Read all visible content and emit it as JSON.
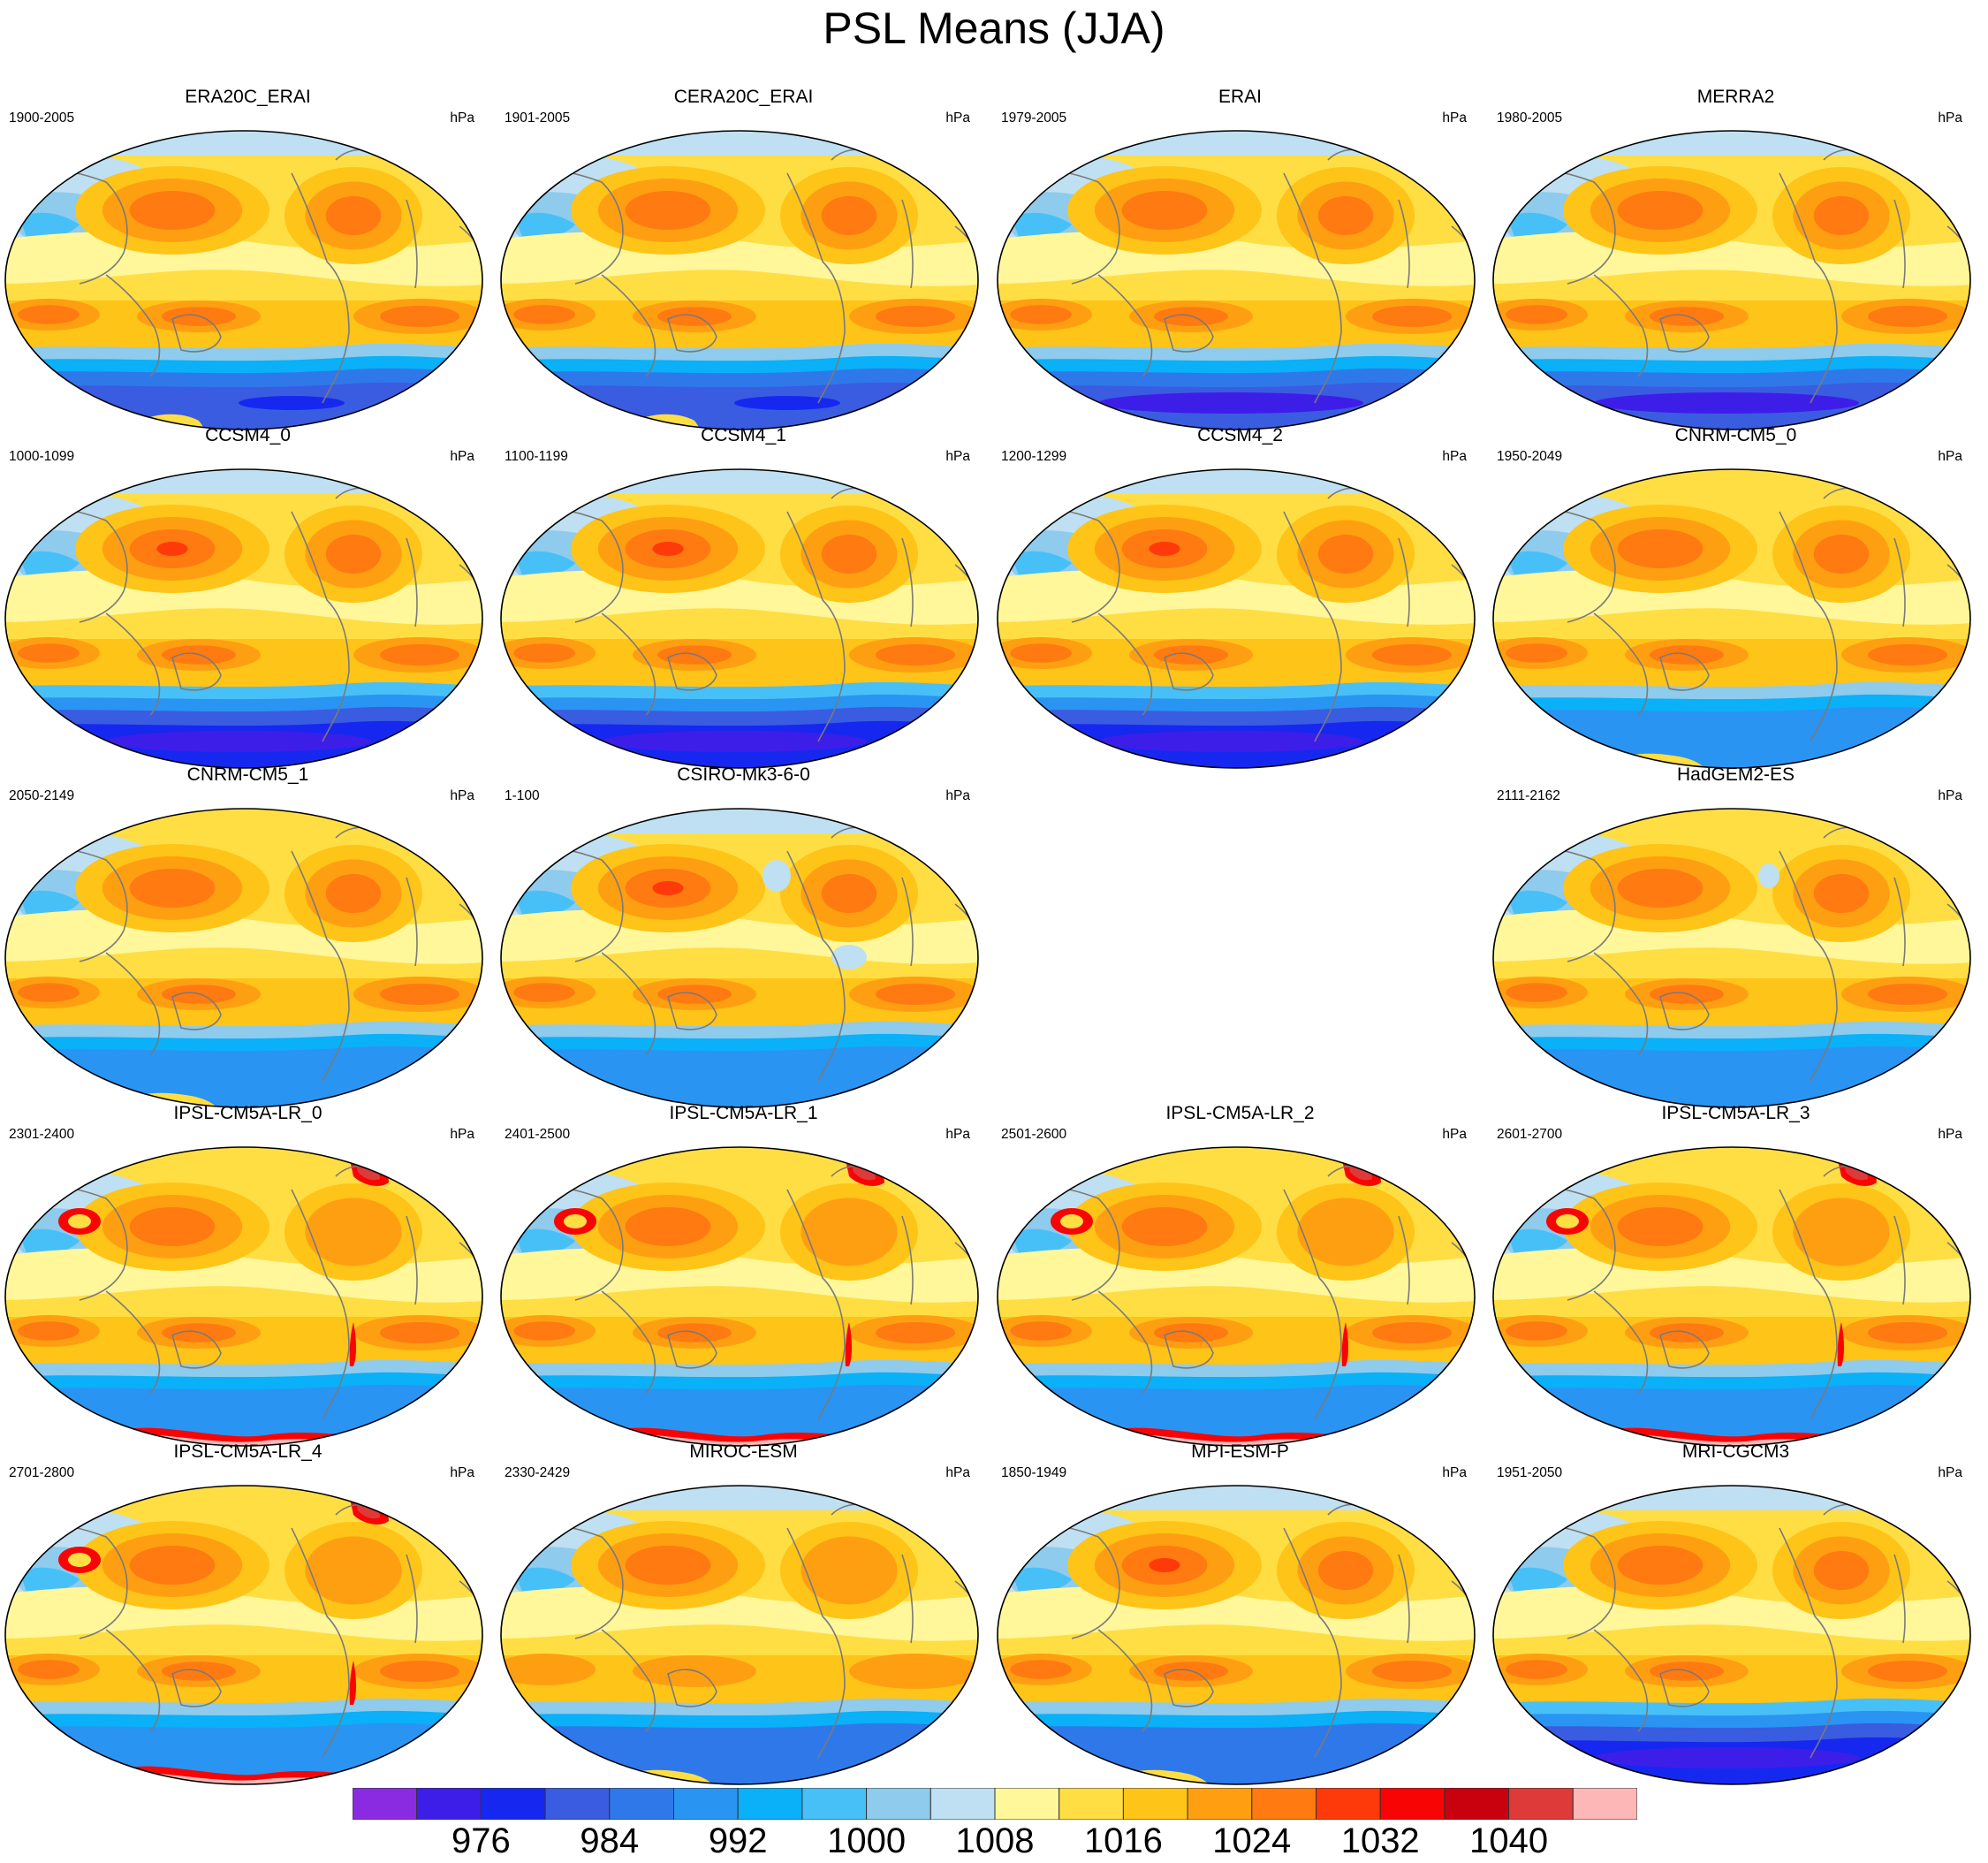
{
  "title": "PSL Means (JJA)",
  "units": "hPa",
  "colorbar": {
    "colors": [
      "#8a2be2",
      "#3d1ee8",
      "#1628f0",
      "#3a5ce0",
      "#2f78ea",
      "#2a94f2",
      "#0ab0f8",
      "#47c0f8",
      "#8ecbec",
      "#bfe0f2",
      "#fff79a",
      "#ffde44",
      "#fec418",
      "#fe9f12",
      "#ff7a10",
      "#ff3a0a",
      "#f90405",
      "#c9000d",
      "#de3a3a",
      "#fdb7b7"
    ],
    "tick_labels": [
      "976",
      "984",
      "992",
      "1000",
      "1008",
      "1016",
      "1024",
      "1032",
      "1040"
    ]
  },
  "panels": [
    {
      "row": 0,
      "col": 0,
      "title": "ERA20C_ERAI",
      "years": "1900-2005",
      "variant": "obs",
      "pole": "blue"
    },
    {
      "row": 0,
      "col": 1,
      "title": "CERA20C_ERAI",
      "years": "1901-2005",
      "variant": "obs",
      "pole": "blue"
    },
    {
      "row": 0,
      "col": 2,
      "title": "ERAI",
      "years": "1979-2005",
      "variant": "obs",
      "pole": "deep"
    },
    {
      "row": 0,
      "col": 3,
      "title": "MERRA2",
      "years": "1980-2005",
      "variant": "obs",
      "pole": "deep"
    },
    {
      "row": 1,
      "col": 0,
      "title": "CCSM4_0",
      "years": "1000-1099",
      "variant": "strong",
      "pole": "deep"
    },
    {
      "row": 1,
      "col": 1,
      "title": "CCSM4_1",
      "years": "1100-1199",
      "variant": "strong",
      "pole": "deep"
    },
    {
      "row": 1,
      "col": 2,
      "title": "CCSM4_2",
      "years": "1200-1299",
      "variant": "strong",
      "pole": "deep"
    },
    {
      "row": 1,
      "col": 3,
      "title": "CNRM-CM5_0",
      "years": "1950-2049",
      "variant": "cnrm",
      "pole": "yellow"
    },
    {
      "row": 2,
      "col": 0,
      "title": "CNRM-CM5_1",
      "years": "2050-2149",
      "variant": "cnrm",
      "pole": "yellow"
    },
    {
      "row": 2,
      "col": 1,
      "title": "CSIRO-Mk3-6-0",
      "years": "1-100",
      "variant": "csiro",
      "pole": "light"
    },
    {
      "row": 2,
      "col": 3,
      "title": "HadGEM2-ES",
      "years": "2111-2162",
      "variant": "hadgem",
      "pole": "light"
    },
    {
      "row": 3,
      "col": 0,
      "title": "IPSL-CM5A-LR_0",
      "years": "2301-2400",
      "variant": "ipsl",
      "pole": "pink"
    },
    {
      "row": 3,
      "col": 1,
      "title": "IPSL-CM5A-LR_1",
      "years": "2401-2500",
      "variant": "ipsl",
      "pole": "pink"
    },
    {
      "row": 3,
      "col": 2,
      "title": "IPSL-CM5A-LR_2",
      "years": "2501-2600",
      "variant": "ipsl",
      "pole": "pink"
    },
    {
      "row": 3,
      "col": 3,
      "title": "IPSL-CM5A-LR_3",
      "years": "2601-2700",
      "variant": "ipsl",
      "pole": "pink"
    },
    {
      "row": 4,
      "col": 0,
      "title": "IPSL-CM5A-LR_4",
      "years": "2701-2800",
      "variant": "ipsl",
      "pole": "pink"
    },
    {
      "row": 4,
      "col": 1,
      "title": "MIROC-ESM",
      "years": "2330-2429",
      "variant": "miroc",
      "pole": "yellow"
    },
    {
      "row": 4,
      "col": 2,
      "title": "MPI-ESM-P",
      "years": "1850-1949",
      "variant": "mpi",
      "pole": "yellow"
    },
    {
      "row": 4,
      "col": 3,
      "title": "MRI-CGCM3",
      "years": "1951-2050",
      "variant": "mri",
      "pole": "deep"
    }
  ]
}
